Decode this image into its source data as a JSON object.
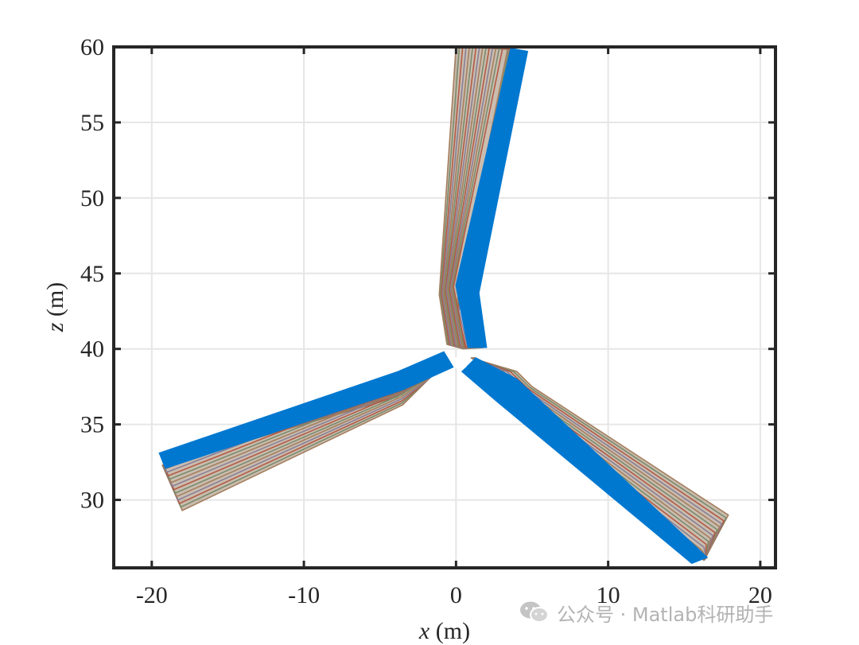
{
  "chart_data": {
    "type": "line",
    "title": "",
    "xlabel": "x (m)",
    "xlabel_var": "x",
    "xlabel_unit": " (m)",
    "ylabel": "z (m)",
    "ylabel_var": "z",
    "ylabel_unit": " (m)",
    "xlim": [
      -22.5,
      21
    ],
    "ylim": [
      25.5,
      60
    ],
    "xticks": [
      -20,
      -10,
      0,
      10,
      20
    ],
    "yticks": [
      30,
      35,
      40,
      45,
      50,
      55,
      60
    ],
    "xtick_labels": [
      "-20",
      "-10",
      "0",
      "10",
      "20"
    ],
    "ytick_labels": [
      "30",
      "35",
      "40",
      "45",
      "50",
      "55",
      "60"
    ],
    "grid": true,
    "legend": "none",
    "deformed_color": "#0078d0",
    "line_colors": [
      "#a57e5e",
      "#7b8b6a",
      "#b35a44",
      "#8a7f96"
    ],
    "hub": {
      "x": 0.3,
      "z": 39.1
    },
    "blades": [
      {
        "name": "upper",
        "deformed": [
          [
            0.8,
            40.1
          ],
          [
            2.0,
            40.1
          ],
          [
            1.5,
            43.7
          ],
          [
            4.7,
            59.7
          ],
          [
            3.6,
            59.9
          ],
          [
            0.0,
            44.2
          ]
        ],
        "undeformed": [
          [
            -0.6,
            40.3
          ],
          [
            0.5,
            40.0
          ],
          [
            -0.1,
            42.3
          ],
          [
            3.4,
            59.9
          ],
          [
            0.0,
            60.0
          ],
          [
            -1.1,
            43.6
          ]
        ]
      },
      {
        "name": "left",
        "deformed": [
          [
            -0.2,
            38.8
          ],
          [
            -0.8,
            39.8
          ],
          [
            -3.8,
            38.5
          ],
          [
            -19.5,
            33.1
          ],
          [
            -19.1,
            32.1
          ],
          [
            -3.5,
            37.3
          ]
        ],
        "undeformed": [
          [
            -1.0,
            38.8
          ],
          [
            -2.8,
            37.0
          ],
          [
            -3.5,
            36.3
          ],
          [
            -18.0,
            29.3
          ],
          [
            -19.3,
            32.3
          ],
          [
            -3.9,
            36.8
          ]
        ]
      },
      {
        "name": "right",
        "deformed": [
          [
            1.3,
            39.4
          ],
          [
            0.4,
            38.5
          ],
          [
            2.6,
            36.6
          ],
          [
            15.5,
            25.8
          ],
          [
            16.5,
            26.2
          ],
          [
            4.0,
            38.0
          ]
        ],
        "undeformed": [
          [
            1.0,
            39.4
          ],
          [
            4.0,
            38.5
          ],
          [
            5.0,
            37.5
          ],
          [
            17.9,
            29.0
          ],
          [
            16.3,
            26.0
          ],
          [
            3.9,
            37.6
          ]
        ]
      }
    ]
  },
  "watermark": {
    "text": "公众号 · Matlab科研助手",
    "icon": "wechat-icon"
  }
}
